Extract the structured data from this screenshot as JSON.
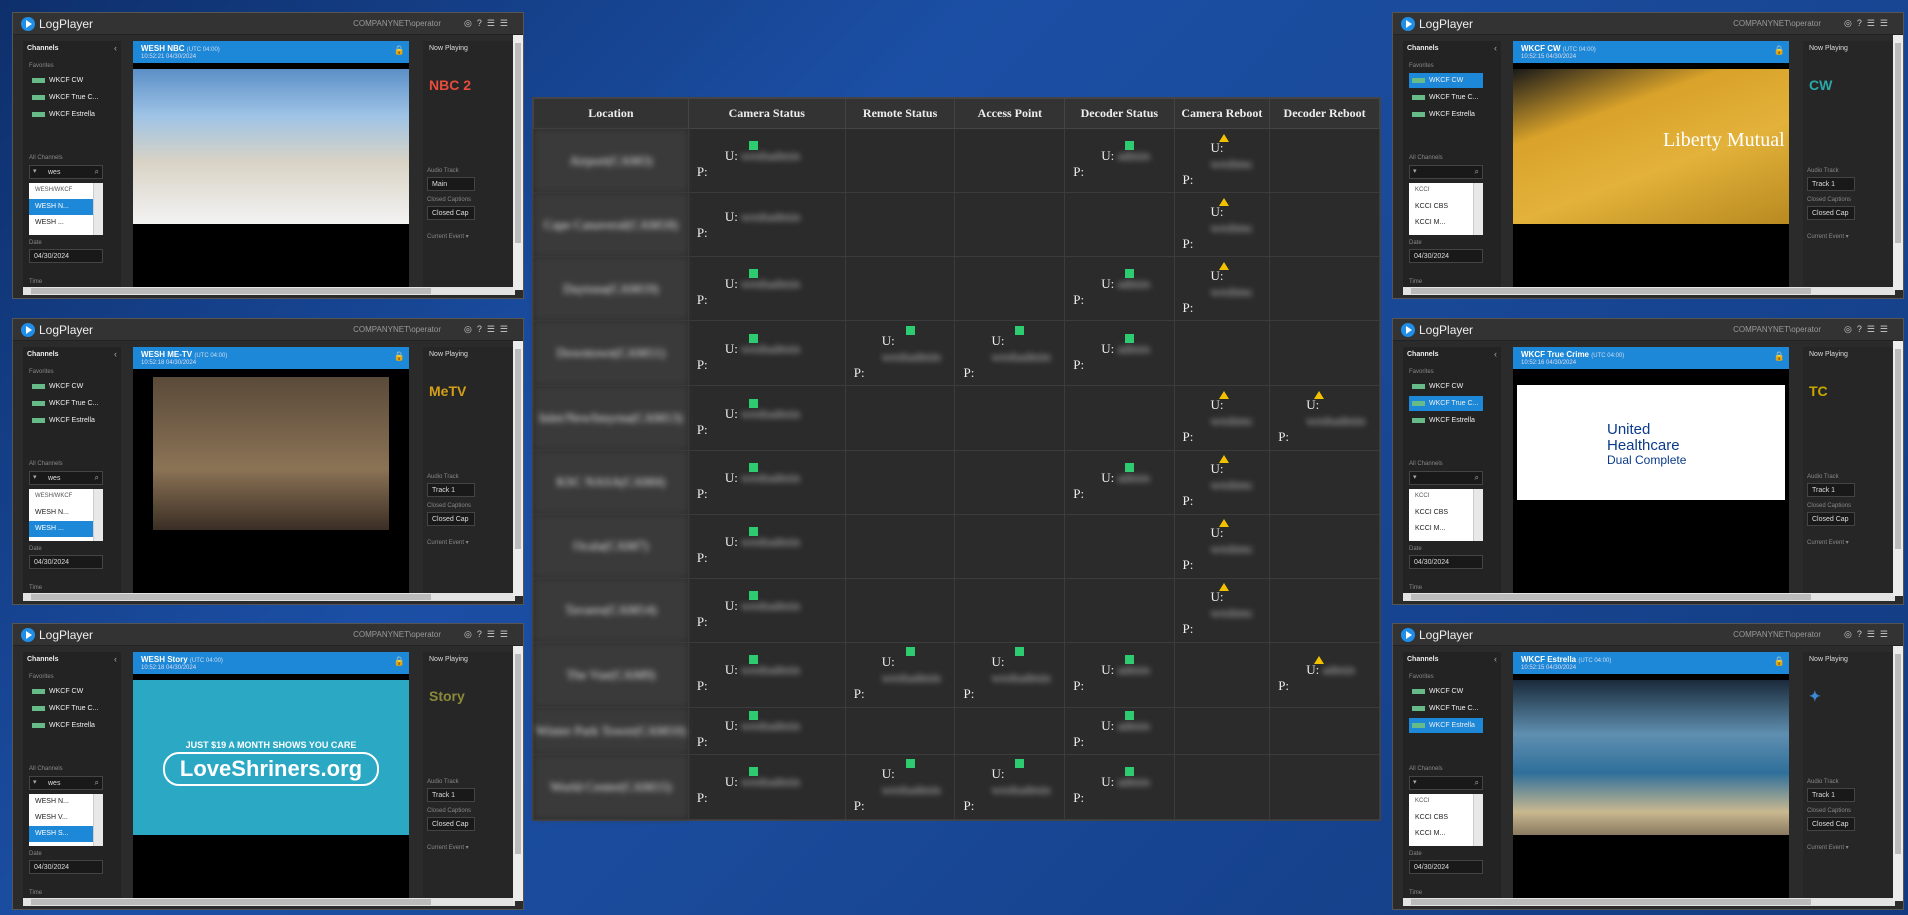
{
  "app": {
    "title": "LogPlayer",
    "user": "COMPANYNET\\operator",
    "icons": [
      "record-icon",
      "help-icon",
      "list-icon",
      "menu-icon"
    ]
  },
  "panel": {
    "channels": "Channels",
    "favorites": "Favorites",
    "all_channels": "All Channels",
    "date_label": "Date",
    "time_label": "Time",
    "now_playing": "Now Playing",
    "audio_track": "Audio Track",
    "closed_captions": "Closed Captions",
    "current_event": "Current Event ▾"
  },
  "players": [
    {
      "id": "p1",
      "channel": "WESH NBC",
      "utc": "(UTC 04:00)",
      "time": "10:52:21",
      "date": "04/30/2024",
      "search": "wes",
      "favorites": [
        "WKCF CW",
        "WKCF True C...",
        "WKCF Estrella"
      ],
      "fav_selected": -1,
      "list": [
        "WESH/WKCF",
        "WESH N...",
        "WESH ..."
      ],
      "list_selected": 1,
      "audio": "Main",
      "cc": "Closed Cap",
      "frame": "newsroom",
      "logo": "NBC 2",
      "logo_color": "#e74c3c"
    },
    {
      "id": "p2",
      "channel": "WESH ME-TV",
      "utc": "(UTC 04:00)",
      "time": "10:52:18",
      "date": "04/30/2024",
      "search": "wes",
      "favorites": [
        "WKCF CW",
        "WKCF True C...",
        "WKCF Estrella"
      ],
      "fav_selected": -1,
      "list": [
        "WESH/WKCF",
        "WESH N...",
        "WESH ..."
      ],
      "list_selected": 2,
      "audio": "Track 1",
      "cc": "Closed Cap",
      "frame": "courtroom",
      "logo": "MeTV",
      "logo_color": "#d4a017"
    },
    {
      "id": "p3",
      "channel": "WESH Story",
      "utc": "(UTC 04:00)",
      "time": "10:52:18",
      "date": "04/30/2024",
      "search": "wes",
      "favorites": [
        "WKCF CW",
        "WKCF True C...",
        "WKCF Estrella"
      ],
      "fav_selected": -1,
      "list": [
        "WESH N...",
        "WESH V...",
        "WESH S..."
      ],
      "list_selected": 2,
      "audio": "Track 1",
      "cc": "Closed Cap",
      "frame": "shriners",
      "logo": "Story",
      "logo_color": "#8a8a3a",
      "ad_line1": "JUST $19 A MONTH SHOWS YOU CARE",
      "ad_line2": "LoveShriners.org"
    },
    {
      "id": "p4",
      "channel": "WKCF CW",
      "utc": "(UTC 04:00)",
      "time": "10:52:15",
      "date": "04/30/2024",
      "search": "",
      "favorites": [
        "WKCF CW",
        "WKCF True C...",
        "WKCF Estrella"
      ],
      "fav_selected": 0,
      "list": [
        "KCCI",
        "KCCI CBS",
        "KCCI M..."
      ],
      "list_selected": -1,
      "audio": "Track 1",
      "cc": "Closed Cap",
      "frame": "taxi",
      "logo": "CW",
      "logo_color": "#2aa8a8",
      "ad_line2": "Liberty Mutual"
    },
    {
      "id": "p5",
      "channel": "WKCF True Crime",
      "utc": "(UTC 04:00)",
      "time": "10:52:16",
      "date": "04/30/2024",
      "search": "",
      "favorites": [
        "WKCF CW",
        "WKCF True C...",
        "WKCF Estrella"
      ],
      "fav_selected": 1,
      "list": [
        "KCCI",
        "KCCI CBS",
        "KCCI M..."
      ],
      "list_selected": -1,
      "audio": "Track 1",
      "cc": "Closed Cap",
      "frame": "uhc",
      "logo": "TC",
      "logo_color": "#c8a800",
      "ad_line1": "United",
      "ad_line2": "Healthcare",
      "ad_line3": "Dual Complete"
    },
    {
      "id": "p6",
      "channel": "WKCF Estrella",
      "utc": "(UTC 04:00)",
      "time": "10:52:15",
      "date": "04/30/2024",
      "search": "",
      "favorites": [
        "WKCF CW",
        "WKCF True C...",
        "WKCF Estrella"
      ],
      "fav_selected": 2,
      "list": [
        "KCCI",
        "KCCI CBS",
        "KCCI M..."
      ],
      "list_selected": -1,
      "audio": "Track 1",
      "cc": "Closed Cap",
      "frame": "sea",
      "logo": "✦",
      "logo_color": "#3a8ad8"
    }
  ],
  "table": {
    "headers": [
      "Location",
      "Camera Status",
      "Remote Status",
      "Access Point",
      "Decoder Status",
      "Camera Reboot",
      "Decoder Reboot"
    ],
    "u_prefix": "U:",
    "p_prefix": "P:",
    "rows": [
      {
        "loc": "Airport(CAM3)",
        "cam": "ok",
        "cam_u": "weshadmin",
        "remote": "",
        "remote_u": "",
        "ap": "",
        "ap_u": "",
        "dec": "ok",
        "dec_u": "admin",
        "crb": "warn",
        "crb_u": "weshmc",
        "drb": "",
        "drb_u": ""
      },
      {
        "loc": "Cape Canaveral(CAM18)",
        "cam": "",
        "cam_u": "weshadmin",
        "remote": "",
        "remote_u": "",
        "ap": "",
        "ap_u": "",
        "dec": "",
        "dec_u": "",
        "crb": "warn",
        "crb_u": "weshmc",
        "drb": "",
        "drb_u": ""
      },
      {
        "loc": "Daytona(CAM19)",
        "cam": "ok",
        "cam_u": "weshadmin",
        "remote": "",
        "remote_u": "",
        "ap": "",
        "ap_u": "",
        "dec": "ok",
        "dec_u": "admin",
        "crb": "warn",
        "crb_u": "weshmc",
        "drb": "",
        "drb_u": ""
      },
      {
        "loc": "Downtown(CAM11)",
        "cam": "ok",
        "cam_u": "weshadmin",
        "remote": "ok",
        "remote_u": "weshadmin",
        "ap": "ok",
        "ap_u": "weshadmin",
        "dec": "ok",
        "dec_u": "admin",
        "crb": "",
        "crb_u": "",
        "drb": "",
        "drb_u": ""
      },
      {
        "loc": "Inlet/NewSmyrna(CAM13)",
        "cam": "ok",
        "cam_u": "weshadmin",
        "remote": "",
        "remote_u": "",
        "ap": "",
        "ap_u": "",
        "dec": "",
        "dec_u": "",
        "crb": "warn",
        "crb_u": "weshmc",
        "drb": "warn",
        "drb_u": "weshadmin"
      },
      {
        "loc": "KSC NASA(CAM4)",
        "cam": "ok",
        "cam_u": "weshadmin",
        "remote": "",
        "remote_u": "",
        "ap": "",
        "ap_u": "",
        "dec": "ok",
        "dec_u": "admin",
        "crb": "warn",
        "crb_u": "weshmc",
        "drb": "",
        "drb_u": ""
      },
      {
        "loc": "Ocala(CAM7)",
        "cam": "ok",
        "cam_u": "weshadmin",
        "remote": "",
        "remote_u": "",
        "ap": "",
        "ap_u": "",
        "dec": "",
        "dec_u": "",
        "crb": "warn",
        "crb_u": "weshmc",
        "drb": "",
        "drb_u": ""
      },
      {
        "loc": "Tavares(CAM14)",
        "cam": "ok",
        "cam_u": "weshadmin",
        "remote": "",
        "remote_u": "",
        "ap": "",
        "ap_u": "",
        "dec": "",
        "dec_u": "",
        "crb": "warn",
        "crb_u": "weshmc",
        "drb": "",
        "drb_u": ""
      },
      {
        "loc": "The Vue(CAM9)",
        "cam": "ok",
        "cam_u": "weshadmin",
        "remote": "ok",
        "remote_u": "weshadmin",
        "ap": "ok",
        "ap_u": "weshadmin",
        "dec": "ok",
        "dec_u": "admin",
        "crb": "",
        "crb_u": "",
        "drb": "warn",
        "drb_u": "admin"
      },
      {
        "loc": "Winter Park Tower(CAM10)",
        "cam": "ok",
        "cam_u": "weshadmin",
        "remote": "",
        "remote_u": "",
        "ap": "",
        "ap_u": "",
        "dec": "ok",
        "dec_u": "admin",
        "crb": "",
        "crb_u": "",
        "drb": "",
        "drb_u": ""
      },
      {
        "loc": "World Center(CAM15)",
        "cam": "ok",
        "cam_u": "weshadmin",
        "remote": "ok",
        "remote_u": "weshadmin",
        "ap": "ok",
        "ap_u": "weshadmin",
        "dec": "ok",
        "dec_u": "admin",
        "crb": "",
        "crb_u": "",
        "drb": "",
        "drb_u": ""
      }
    ]
  },
  "colors": {
    "accent": "#1e88d8",
    "ok": "#2ecc71",
    "warn": "#f2c200"
  }
}
